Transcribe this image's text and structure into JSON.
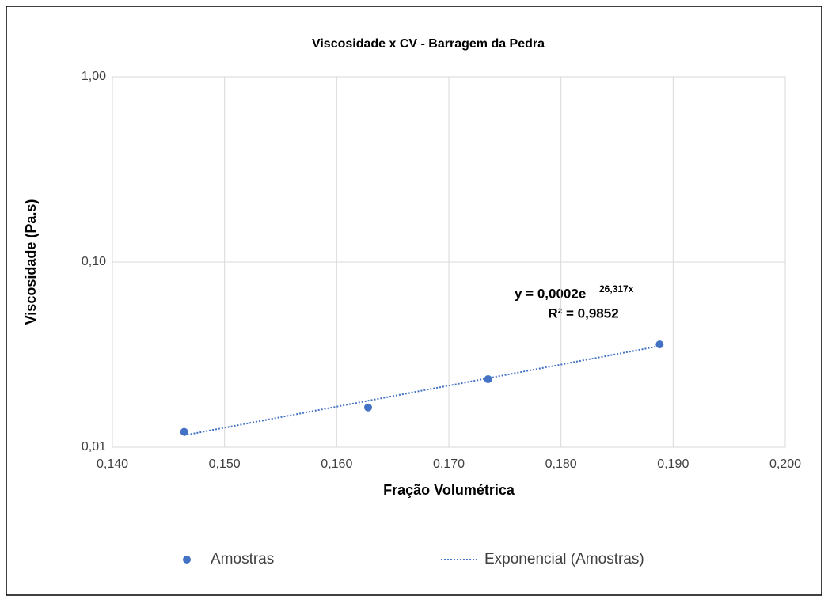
{
  "chart_data": {
    "type": "scatter",
    "title": "Viscosidade x CV - Barragem da Pedra",
    "xlabel": "Fração Volumétrica",
    "ylabel": "Viscosidade (Pa.s)",
    "yscale": "log",
    "grid": true,
    "legend": "bottom",
    "xlim": [
      0.14,
      0.2
    ],
    "xticks": [
      {
        "value": 0.14,
        "label": "0,140"
      },
      {
        "value": 0.15,
        "label": "0,150"
      },
      {
        "value": 0.16,
        "label": "0,160"
      },
      {
        "value": 0.17,
        "label": "0,170"
      },
      {
        "value": 0.18,
        "label": "0,180"
      },
      {
        "value": 0.19,
        "label": "0,190"
      },
      {
        "value": 0.2,
        "label": "0,200"
      }
    ],
    "ylim": [
      0.01,
      1
    ],
    "yticks": [
      {
        "value": 0.01,
        "label": "0,01"
      },
      {
        "value": 0.1,
        "label": "0,10"
      },
      {
        "value": 1,
        "label": "1,00"
      }
    ],
    "series": [
      {
        "name": "Amostras",
        "color": "#4472c4",
        "x": [
          0.1464,
          0.1628,
          0.1735,
          0.1888
        ],
        "values": [
          0.0121,
          0.0164,
          0.0233,
          0.0359
        ]
      },
      {
        "name": "Exponencial (Amostras)",
        "color": "#4472c4",
        "style": "dotted",
        "x": [
          0.1464,
          0.1888
        ],
        "values": [
          0.0116,
          0.0352
        ]
      }
    ],
    "annotations": [
      "y = 0,0002e",
      "26,317x",
      "R² = 0,9852"
    ]
  }
}
